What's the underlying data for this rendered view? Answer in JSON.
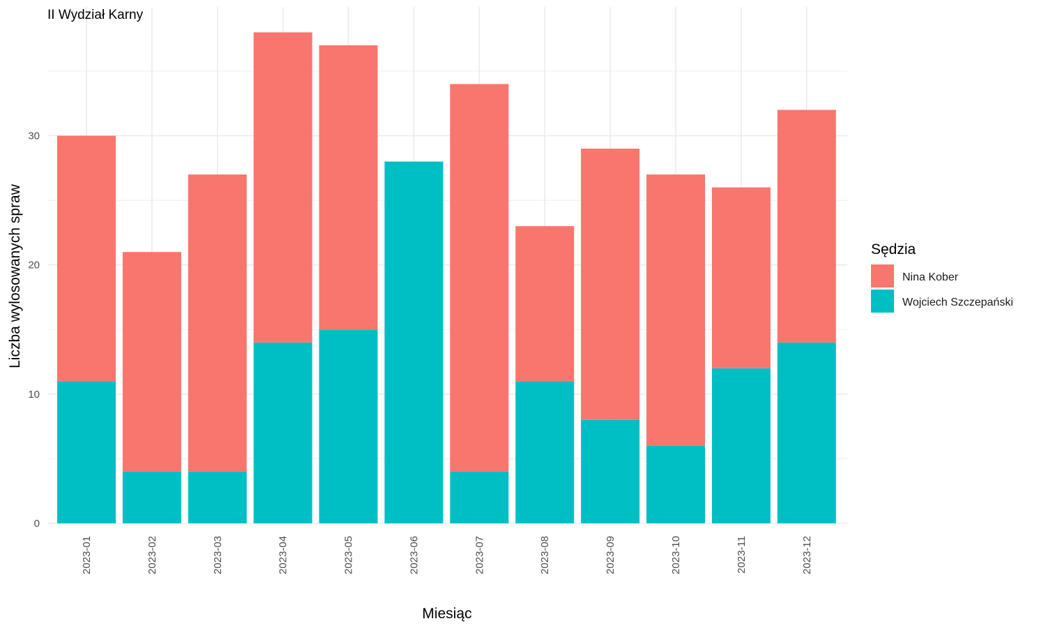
{
  "chart_data": {
    "type": "bar",
    "stacked": true,
    "title": "II Wydział Karny",
    "xlabel": "Miesiąc",
    "ylabel": "Liczba wylosowanych spraw",
    "categories": [
      "2023-01",
      "2023-02",
      "2023-03",
      "2023-04",
      "2023-05",
      "2023-06",
      "2023-07",
      "2023-08",
      "2023-09",
      "2023-10",
      "2023-11",
      "2023-12"
    ],
    "series": [
      {
        "name": "Nina Kober",
        "color": "#F8766D",
        "values": [
          19,
          17,
          23,
          24,
          22,
          0,
          30,
          12,
          21,
          21,
          14,
          18
        ]
      },
      {
        "name": "Wojciech Szczepański",
        "color": "#00BFC4",
        "values": [
          11,
          4,
          4,
          14,
          15,
          28,
          4,
          11,
          8,
          6,
          12,
          14
        ]
      }
    ],
    "stack_order_bottom_to_top": [
      "Wojciech Szczepański",
      "Nina Kober"
    ],
    "ylim": [
      0,
      40
    ],
    "yticks": [
      0,
      10,
      20,
      30
    ],
    "grid": true,
    "legend_title": "Sędzia",
    "legend_position": "right",
    "x_tick_rotation": "vertical",
    "gridline_color": "#ebebeb"
  }
}
